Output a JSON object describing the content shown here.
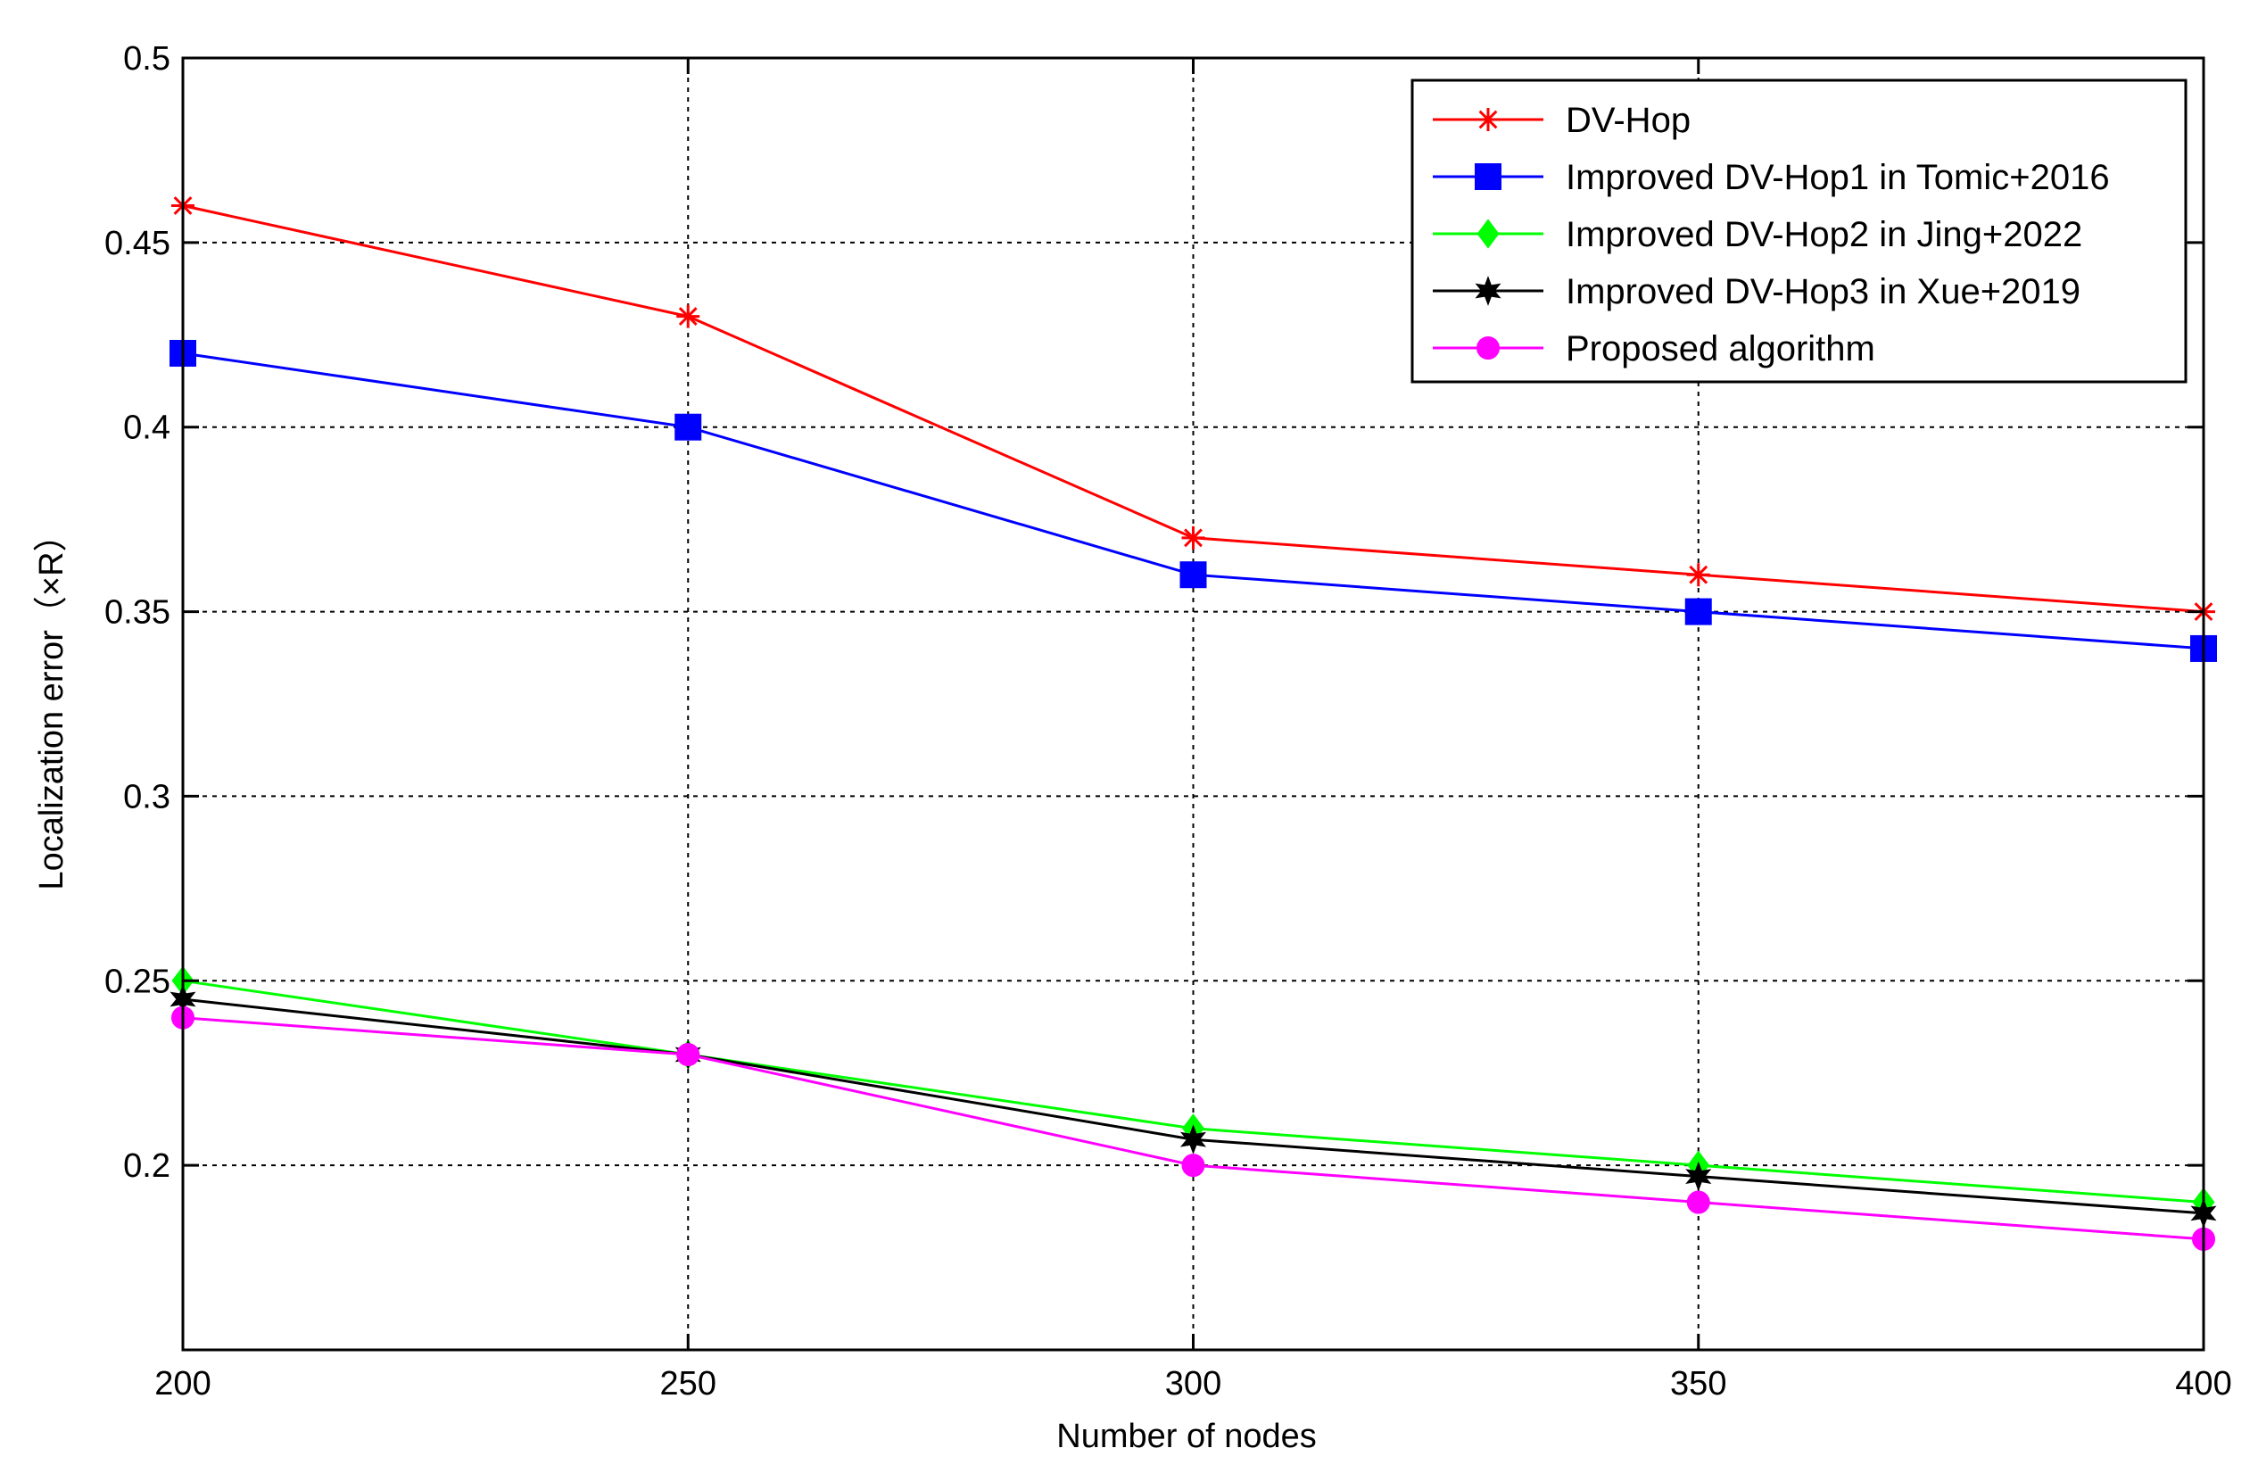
{
  "chart_data": {
    "type": "line",
    "title": "",
    "xlabel": "Number of nodes",
    "ylabel": "Localization error（×R）",
    "x": [
      200,
      250,
      300,
      350,
      400
    ],
    "xlim": [
      200,
      400
    ],
    "ylim": [
      0.15,
      0.5
    ],
    "x_ticks": [
      "200",
      "250",
      "300",
      "350",
      "400"
    ],
    "y_ticks": [
      "0.2",
      "0.25",
      "0.3",
      "0.35",
      "0.4",
      "0.45",
      "0.5"
    ],
    "grid": true,
    "legend_position": "top-right",
    "series": [
      {
        "name": "DV-Hop",
        "values": [
          0.46,
          0.43,
          0.37,
          0.36,
          0.35
        ],
        "color": "#ff0000",
        "marker": "asterisk"
      },
      {
        "name": "Improved DV-Hop1 in Tomic+2016",
        "values": [
          0.42,
          0.4,
          0.36,
          0.35,
          0.34
        ],
        "color": "#0000ff",
        "marker": "square"
      },
      {
        "name": "Improved DV-Hop2 in Jing+2022",
        "values": [
          0.25,
          0.23,
          0.21,
          0.2,
          0.19
        ],
        "color": "#00ff00",
        "marker": "diamond"
      },
      {
        "name": "Improved DV-Hop3 in Xue+2019",
        "values": [
          0.245,
          0.23,
          0.207,
          0.197,
          0.187
        ],
        "color": "#000000",
        "marker": "star"
      },
      {
        "name": "Proposed algorithm",
        "values": [
          0.24,
          0.23,
          0.2,
          0.19,
          0.18
        ],
        "color": "#ff00ff",
        "marker": "circle"
      }
    ]
  }
}
